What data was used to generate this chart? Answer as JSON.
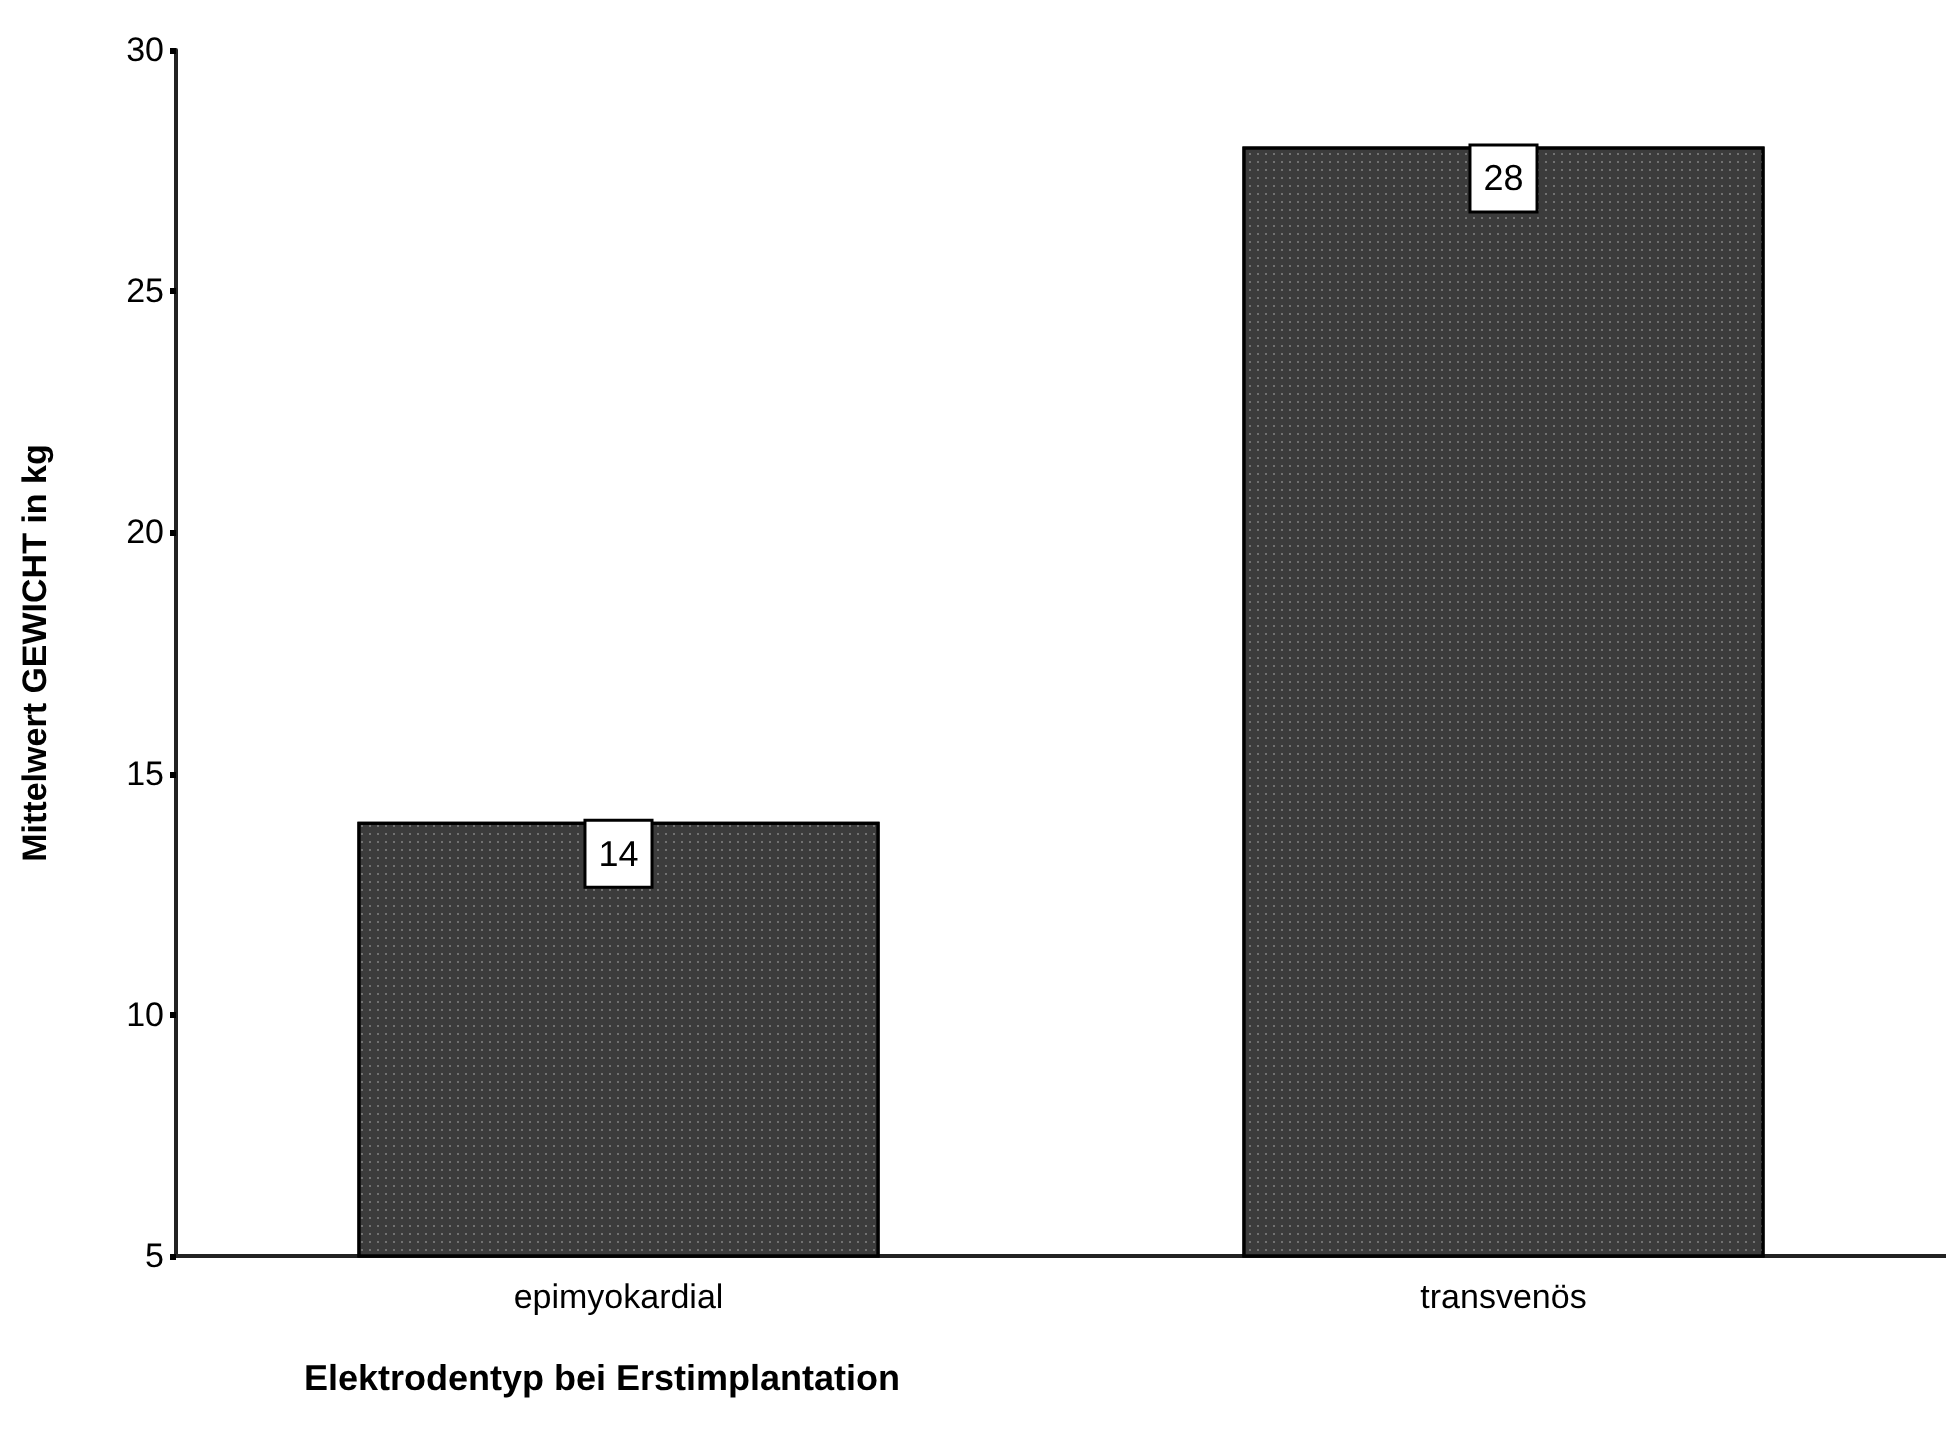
{
  "chart_data": {
    "type": "bar",
    "xlabel": "Elektrodentyp bei Erstimplantation",
    "ylabel": "Mittelwert GEWICHT in kg",
    "categories": [
      "epimyokardial",
      "transvenös"
    ],
    "values": [
      14,
      28
    ],
    "color": "#3c3c3c",
    "ylim": [
      5,
      30
    ],
    "yticks": [
      5,
      10,
      15,
      20,
      25,
      30
    ],
    "grid": false,
    "data_labels": true
  }
}
